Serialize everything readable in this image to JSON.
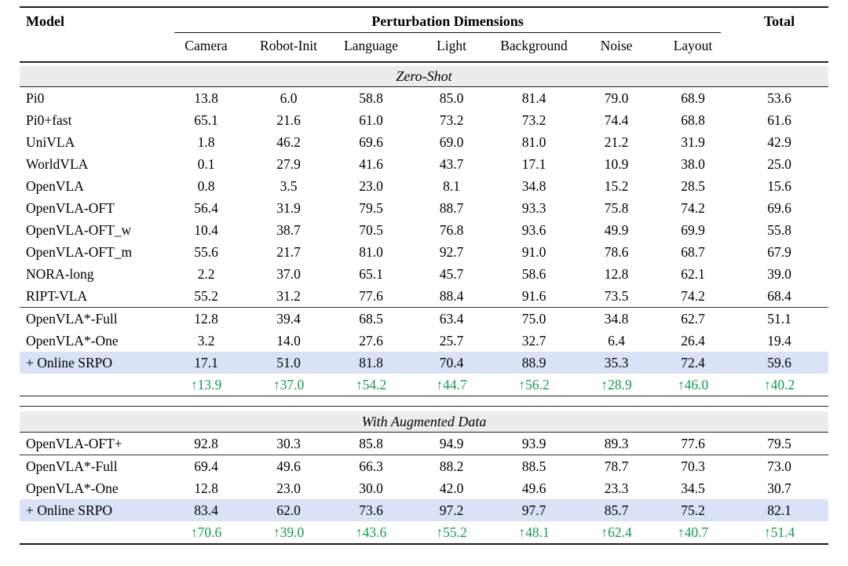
{
  "colors": {
    "highlight_row_bg": "#d9e2f6",
    "section_band_bg": "#ececec",
    "delta_green": "#129c56"
  },
  "glyphs": {
    "up_arrow": "↑"
  },
  "header": {
    "model": "Model",
    "group": "Perturbation Dimensions",
    "total": "Total",
    "dims": [
      "Camera",
      "Robot-Init",
      "Language",
      "Light",
      "Background",
      "Noise",
      "Layout"
    ]
  },
  "sections": [
    {
      "title": "Zero-Shot",
      "groups": [
        {
          "rows": [
            {
              "model": "Pi0",
              "values": [
                "13.8",
                "6.0",
                "58.8",
                "85.0",
                "81.4",
                "79.0",
                "68.9",
                "53.6"
              ]
            },
            {
              "model": "Pi0+fast",
              "values": [
                "65.1",
                "21.6",
                "61.0",
                "73.2",
                "73.2",
                "74.4",
                "68.8",
                "61.6"
              ]
            },
            {
              "model": "UniVLA",
              "values": [
                "1.8",
                "46.2",
                "69.6",
                "69.0",
                "81.0",
                "21.2",
                "31.9",
                "42.9"
              ]
            },
            {
              "model": "WorldVLA",
              "values": [
                "0.1",
                "27.9",
                "41.6",
                "43.7",
                "17.1",
                "10.9",
                "38.0",
                "25.0"
              ]
            },
            {
              "model": "OpenVLA",
              "values": [
                "0.8",
                "3.5",
                "23.0",
                "8.1",
                "34.8",
                "15.2",
                "28.5",
                "15.6"
              ]
            },
            {
              "model": "OpenVLA-OFT",
              "values": [
                "56.4",
                "31.9",
                "79.5",
                "88.7",
                "93.3",
                "75.8",
                "74.2",
                "69.6"
              ]
            },
            {
              "model": "OpenVLA-OFT_w",
              "values": [
                "10.4",
                "38.7",
                "70.5",
                "76.8",
                "93.6",
                "49.9",
                "69.9",
                "55.8"
              ]
            },
            {
              "model": "OpenVLA-OFT_m",
              "values": [
                "55.6",
                "21.7",
                "81.0",
                "92.7",
                "91.0",
                "78.6",
                "68.7",
                "67.9"
              ]
            },
            {
              "model": "NORA-long",
              "values": [
                "2.2",
                "37.0",
                "65.1",
                "45.7",
                "58.6",
                "12.8",
                "62.1",
                "39.0"
              ]
            },
            {
              "model": "RIPT-VLA",
              "values": [
                "55.2",
                "31.2",
                "77.6",
                "88.4",
                "91.6",
                "73.5",
                "74.2",
                "68.4"
              ]
            }
          ]
        },
        {
          "rows": [
            {
              "model": "OpenVLA*-Full",
              "values": [
                "12.8",
                "39.4",
                "68.5",
                "63.4",
                "75.0",
                "34.8",
                "62.7",
                "51.1"
              ]
            },
            {
              "model": "OpenVLA*-One",
              "values": [
                "3.2",
                "14.0",
                "27.6",
                "25.7",
                "32.7",
                "6.4",
                "26.4",
                "19.4"
              ]
            },
            {
              "model": "+ Online SRPO",
              "highlight": true,
              "values": [
                "17.1",
                "51.0",
                "81.8",
                "70.4",
                "88.9",
                "35.3",
                "72.4",
                "59.6"
              ]
            }
          ],
          "delta": [
            "13.9",
            "37.0",
            "54.2",
            "44.7",
            "56.2",
            "28.9",
            "46.0",
            "40.2"
          ]
        }
      ]
    },
    {
      "title": "With Augmented Data",
      "groups": [
        {
          "rows": [
            {
              "model": "OpenVLA-OFT+",
              "values": [
                "92.8",
                "30.3",
                "85.8",
                "94.9",
                "93.9",
                "89.3",
                "77.6",
                "79.5"
              ]
            }
          ]
        },
        {
          "rows": [
            {
              "model": "OpenVLA*-Full",
              "values": [
                "69.4",
                "49.6",
                "66.3",
                "88.2",
                "88.5",
                "78.7",
                "70.3",
                "73.0"
              ]
            },
            {
              "model": "OpenVLA*-One",
              "values": [
                "12.8",
                "23.0",
                "30.0",
                "42.0",
                "49.6",
                "23.3",
                "34.5",
                "30.7"
              ]
            },
            {
              "model": "+ Online SRPO",
              "highlight": true,
              "values": [
                "83.4",
                "62.0",
                "73.6",
                "97.2",
                "97.7",
                "85.7",
                "75.2",
                "82.1"
              ]
            }
          ],
          "delta": [
            "70.6",
            "39.0",
            "43.6",
            "55.2",
            "48.1",
            "62.4",
            "40.7",
            "51.4"
          ]
        }
      ]
    }
  ]
}
